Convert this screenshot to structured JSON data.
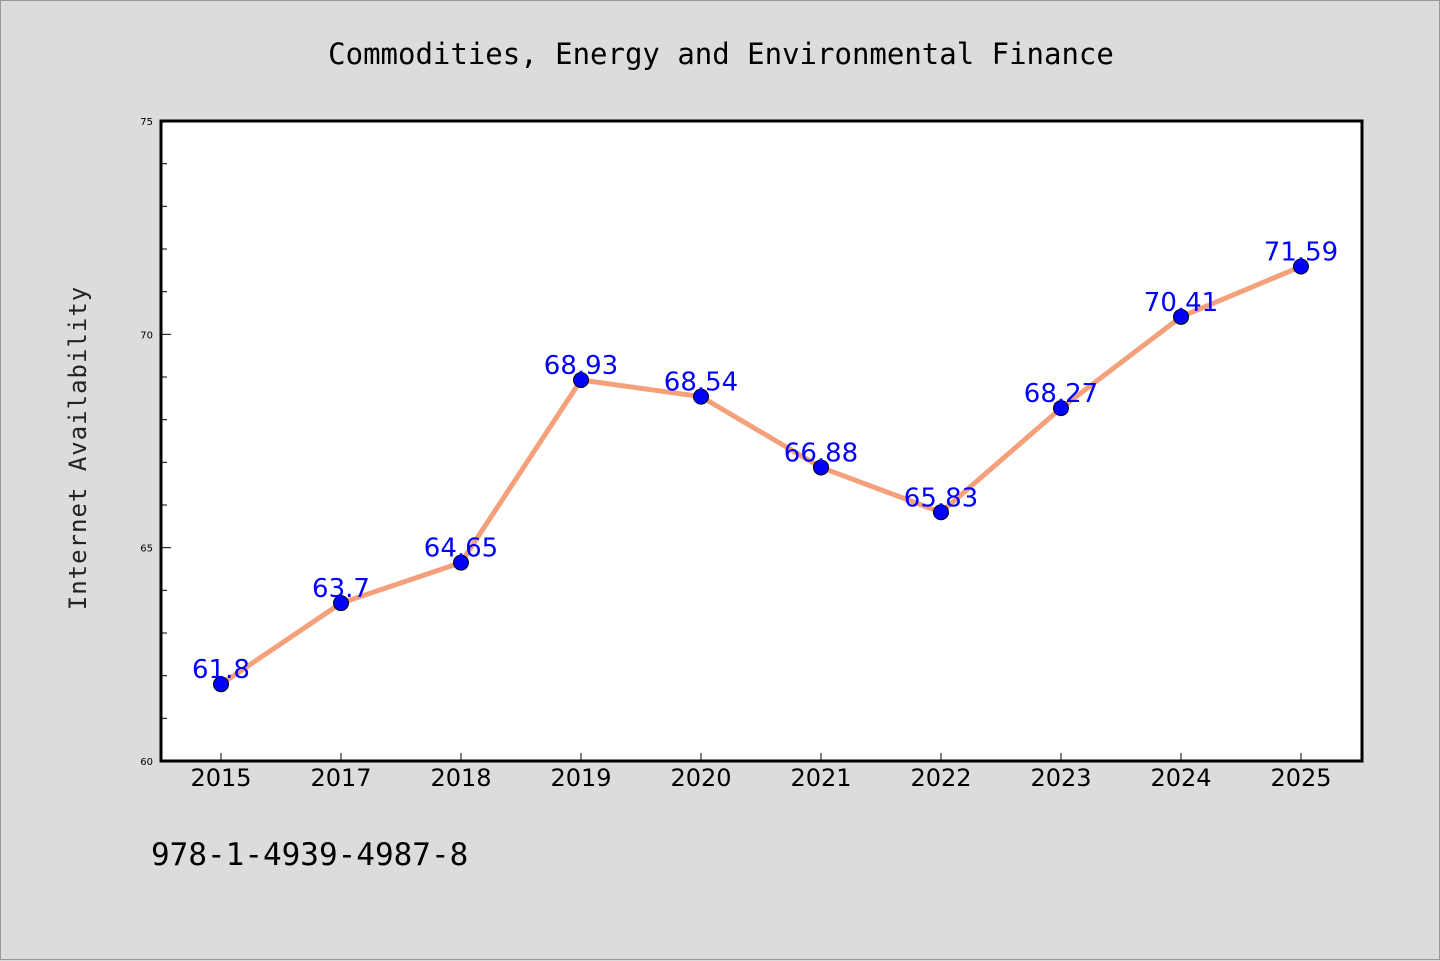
{
  "chart_data": {
    "type": "line",
    "title": "Commodities, Energy and Environmental Finance",
    "xlabel": "",
    "ylabel": "Internet Availability",
    "categories": [
      "2015",
      "2017",
      "2018",
      "2019",
      "2020",
      "2021",
      "2022",
      "2023",
      "2024",
      "2025"
    ],
    "series": [
      {
        "values": [
          61.8,
          63.7,
          64.65,
          68.93,
          68.54,
          66.88,
          65.83,
          68.27,
          70.41,
          71.59
        ],
        "labels": [
          "61.8",
          "63.7",
          "64.65",
          "68.93",
          "68.54",
          "66.88",
          "65.83",
          "68.27",
          "70.41",
          "71.59"
        ],
        "line_color": "#f4a07a",
        "marker_color": "#0000ff"
      }
    ],
    "ylim": [
      60,
      75
    ],
    "yticks": [
      60,
      65,
      70,
      75
    ],
    "ytick_labels": [
      "60",
      "65",
      "70",
      "75"
    ],
    "grid": false,
    "plot_background": "#ffffff",
    "figure_background": "#dcdcdc",
    "label_color": "#0000ff"
  },
  "footnote": "978-1-4939-4987-8"
}
